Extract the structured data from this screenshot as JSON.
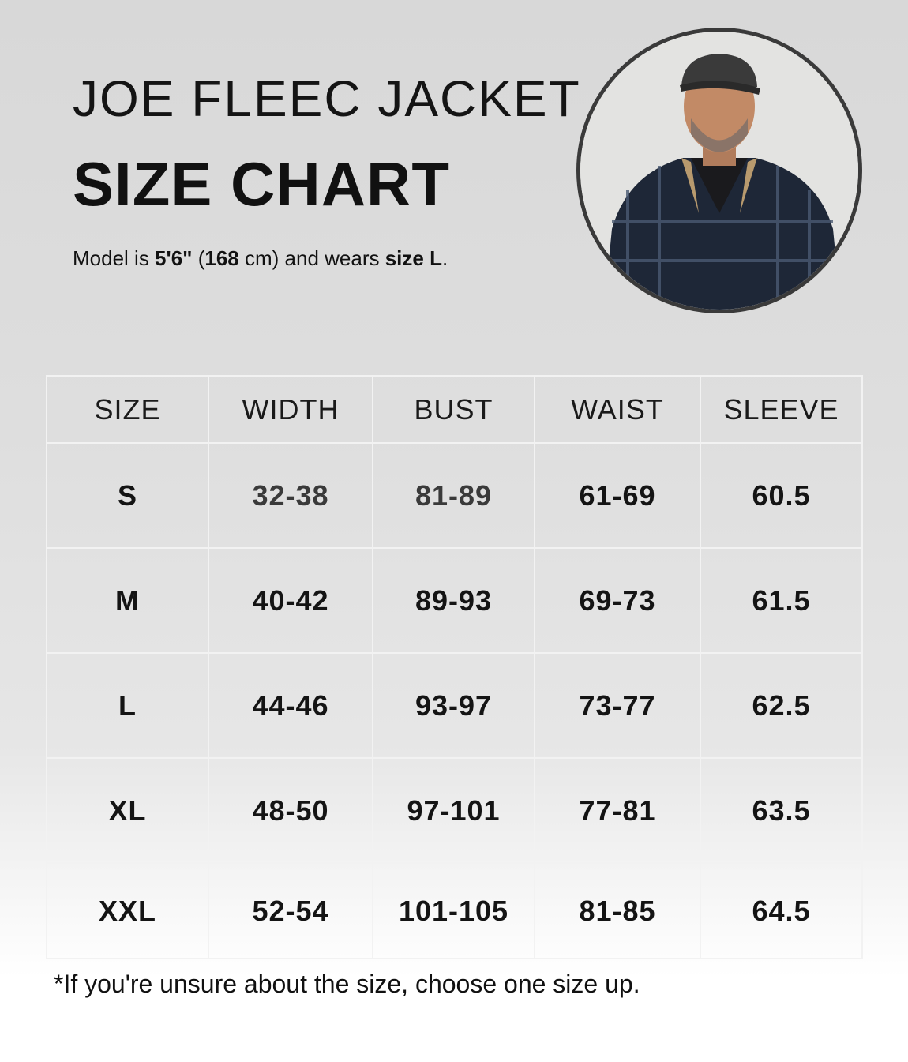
{
  "header": {
    "title_line1": "JOE FLEEC JACKET",
    "title_line2": "SIZE CHART",
    "model_prefix": "Model is ",
    "model_height_ft": "5'6\"",
    "model_paren_open": " (",
    "model_height_cm": "168",
    "model_middle": " cm) and wears ",
    "model_size": "size L",
    "model_end": "."
  },
  "photo": {
    "icon": "model-portrait-image"
  },
  "table": {
    "columns": [
      "SIZE",
      "WIDTH",
      "BUST",
      "WAIST",
      "SLEEVE"
    ],
    "rows": [
      [
        "S",
        "32-38",
        "81-89",
        "61-69",
        "60.5"
      ],
      [
        "M",
        "40-42",
        "89-93",
        "69-73",
        "61.5"
      ],
      [
        "L",
        "44-46",
        "93-97",
        "73-77",
        "62.5"
      ],
      [
        "XL",
        "48-50",
        "97-101",
        "77-81",
        "63.5"
      ],
      [
        "XXL",
        "52-54",
        "101-105",
        "81-85",
        "64.5"
      ]
    ]
  },
  "footnote": "*If you're unsure about the size, choose one size up."
}
